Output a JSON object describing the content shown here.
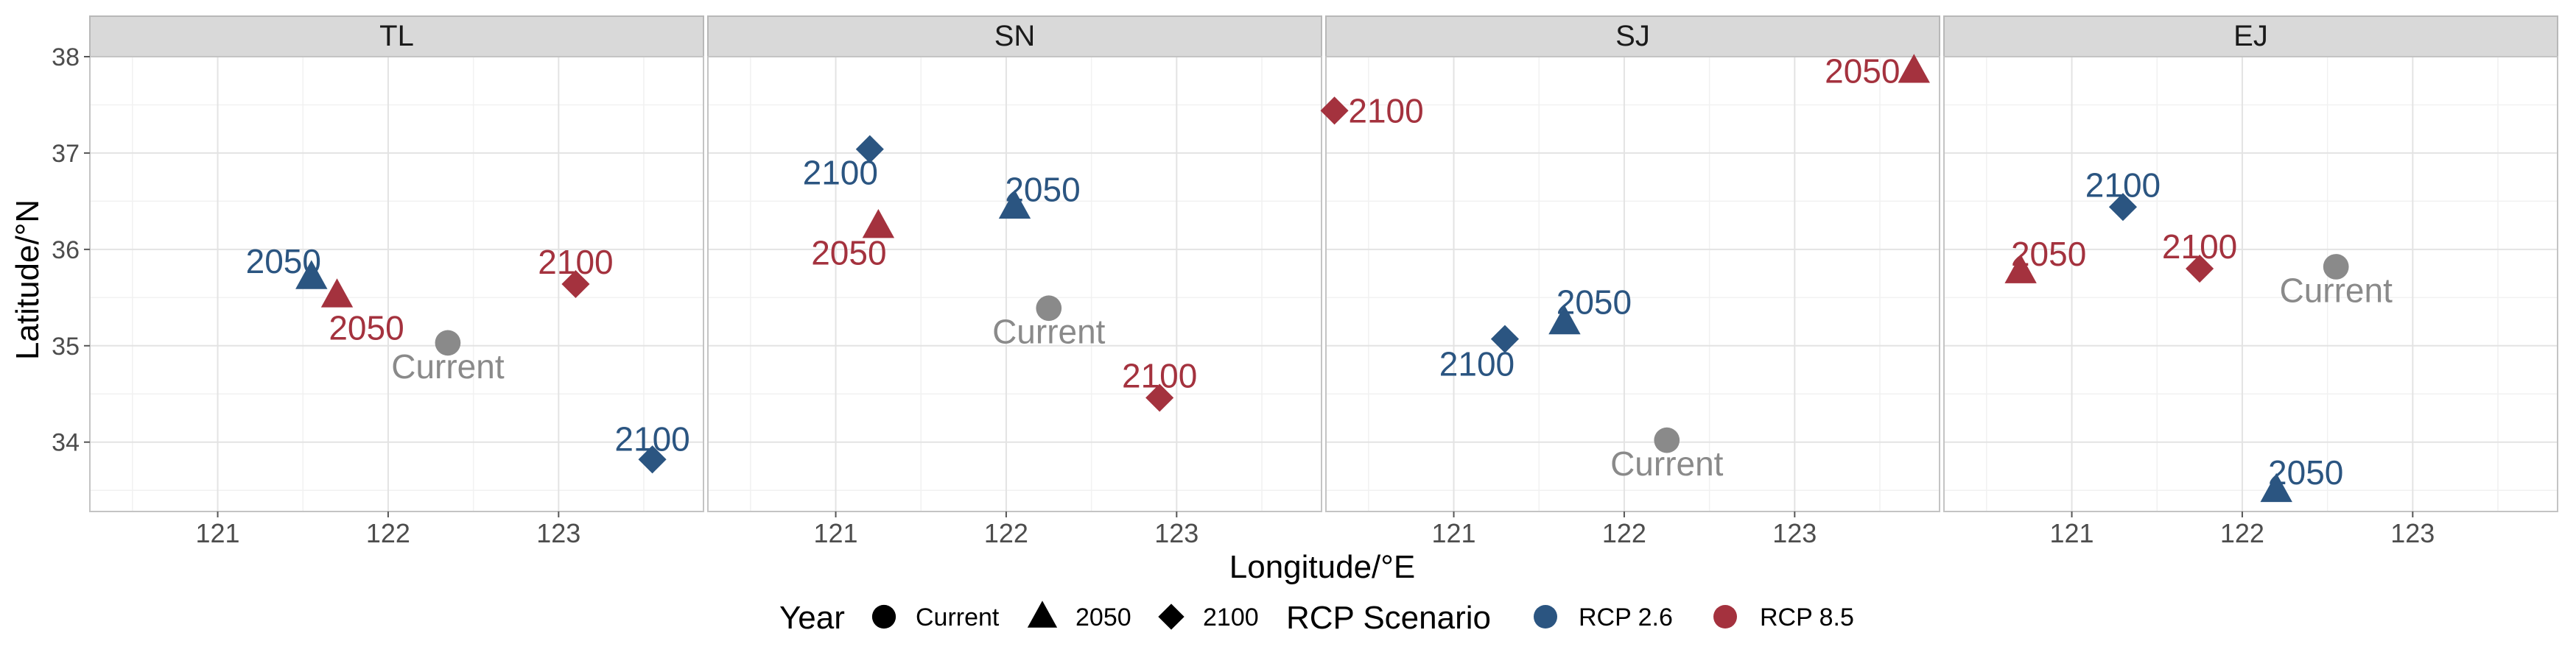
{
  "chart_data": {
    "type": "scatter",
    "facets": [
      "TL",
      "SN",
      "SJ",
      "EJ"
    ],
    "xlabel": "Longitude/°E",
    "ylabel": "Latitude/°N",
    "xlim": [
      120.25,
      123.85
    ],
    "ylim": [
      33.28,
      38.0
    ],
    "x_ticks": [
      121,
      122,
      123
    ],
    "y_ticks": [
      34,
      35,
      36,
      37,
      38
    ],
    "grid": true,
    "colors": {
      "rcp26": "#2b5581",
      "rcp85": "#a4323e",
      "current": "#8a8a8a"
    },
    "legend": {
      "position": "bottom",
      "year_title": "Year",
      "year_items": [
        "Current",
        "2050",
        "2100"
      ],
      "scenario_title": "RCP Scenario",
      "scenario_items": [
        "RCP 2.6",
        "RCP 8.5"
      ]
    },
    "points": [
      {
        "facet": "TL",
        "x": 122.35,
        "y": 35.03,
        "year": "Current",
        "scenario": "",
        "label": "Current"
      },
      {
        "facet": "TL",
        "x": 121.55,
        "y": 35.71,
        "year": "2050",
        "scenario": "RCP 2.6",
        "label": "2050"
      },
      {
        "facet": "TL",
        "x": 121.7,
        "y": 35.52,
        "year": "2050",
        "scenario": "RCP 8.5",
        "label": "2050"
      },
      {
        "facet": "TL",
        "x": 123.1,
        "y": 35.64,
        "year": "2100",
        "scenario": "RCP 8.5",
        "label": "2100"
      },
      {
        "facet": "TL",
        "x": 123.55,
        "y": 33.82,
        "year": "2100",
        "scenario": "RCP 2.6",
        "label": "2100"
      },
      {
        "facet": "SN",
        "x": 122.25,
        "y": 35.39,
        "year": "Current",
        "scenario": "",
        "label": "Current"
      },
      {
        "facet": "SN",
        "x": 122.05,
        "y": 36.44,
        "year": "2050",
        "scenario": "RCP 2.6",
        "label": "2050"
      },
      {
        "facet": "SN",
        "x": 121.25,
        "y": 36.24,
        "year": "2050",
        "scenario": "RCP 8.5",
        "label": "2050"
      },
      {
        "facet": "SN",
        "x": 121.2,
        "y": 37.04,
        "year": "2100",
        "scenario": "RCP 2.6",
        "label": "2100"
      },
      {
        "facet": "SN",
        "x": 122.9,
        "y": 34.46,
        "year": "2100",
        "scenario": "RCP 8.5",
        "label": "2100"
      },
      {
        "facet": "SJ",
        "x": 122.25,
        "y": 34.02,
        "year": "Current",
        "scenario": "",
        "label": "Current"
      },
      {
        "facet": "SJ",
        "x": 121.65,
        "y": 35.24,
        "year": "2050",
        "scenario": "RCP 2.6",
        "label": "2050"
      },
      {
        "facet": "SJ",
        "x": 123.7,
        "y": 37.85,
        "year": "2050",
        "scenario": "RCP 8.5",
        "label": "2050"
      },
      {
        "facet": "SJ",
        "x": 121.3,
        "y": 35.07,
        "year": "2100",
        "scenario": "RCP 2.6",
        "label": "2100"
      },
      {
        "facet": "SJ",
        "x": 120.3,
        "y": 37.44,
        "year": "2100",
        "scenario": "RCP 8.5",
        "label": "2100"
      },
      {
        "facet": "EJ",
        "x": 122.55,
        "y": 35.82,
        "year": "Current",
        "scenario": "",
        "label": "Current"
      },
      {
        "facet": "EJ",
        "x": 122.2,
        "y": 33.5,
        "year": "2050",
        "scenario": "RCP 2.6",
        "label": "2050"
      },
      {
        "facet": "EJ",
        "x": 120.7,
        "y": 35.77,
        "year": "2050",
        "scenario": "RCP 8.5",
        "label": "2050"
      },
      {
        "facet": "EJ",
        "x": 121.3,
        "y": 36.44,
        "year": "2100",
        "scenario": "RCP 2.6",
        "label": "2100"
      },
      {
        "facet": "EJ",
        "x": 121.75,
        "y": 35.8,
        "year": "2100",
        "scenario": "RCP 8.5",
        "label": "2100"
      }
    ]
  }
}
